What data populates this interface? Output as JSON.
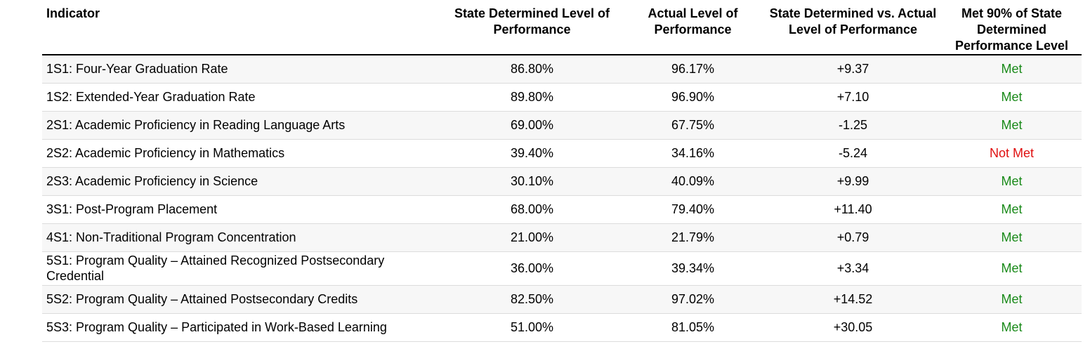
{
  "columns": {
    "indicator": "Indicator",
    "state_determined": "State Determined Level of Performance",
    "actual": "Actual Level of Performance",
    "difference": "State Determined vs. Actual Level of Performance",
    "met": "Met 90% of State Determined Performance Level"
  },
  "colors": {
    "met": "#1a8a1a",
    "not_met": "#e01010"
  },
  "rows": [
    {
      "indicator": "1S1: Four-Year Graduation Rate",
      "state_determined": "86.80%",
      "actual": "96.17%",
      "difference": "+9.37",
      "met": "Met",
      "status": "met"
    },
    {
      "indicator": "1S2: Extended-Year Graduation Rate",
      "state_determined": "89.80%",
      "actual": "96.90%",
      "difference": "+7.10",
      "met": "Met",
      "status": "met"
    },
    {
      "indicator": "2S1: Academic Proficiency in Reading Language Arts",
      "state_determined": "69.00%",
      "actual": "67.75%",
      "difference": "-1.25",
      "met": "Met",
      "status": "met"
    },
    {
      "indicator": "2S2: Academic Proficiency in Mathematics",
      "state_determined": "39.40%",
      "actual": "34.16%",
      "difference": "-5.24",
      "met": "Not Met",
      "status": "notmet"
    },
    {
      "indicator": "2S3: Academic Proficiency in Science",
      "state_determined": "30.10%",
      "actual": "40.09%",
      "difference": "+9.99",
      "met": "Met",
      "status": "met"
    },
    {
      "indicator": "3S1: Post-Program Placement",
      "state_determined": "68.00%",
      "actual": "79.40%",
      "difference": "+11.40",
      "met": "Met",
      "status": "met"
    },
    {
      "indicator": "4S1: Non-Traditional Program Concentration",
      "state_determined": "21.00%",
      "actual": "21.79%",
      "difference": "+0.79",
      "met": "Met",
      "status": "met"
    },
    {
      "indicator": "5S1: Program Quality – Attained Recognized Postsecondary Credential",
      "state_determined": "36.00%",
      "actual": "39.34%",
      "difference": "+3.34",
      "met": "Met",
      "status": "met"
    },
    {
      "indicator": "5S2: Program Quality – Attained Postsecondary Credits",
      "state_determined": "82.50%",
      "actual": "97.02%",
      "difference": "+14.52",
      "met": "Met",
      "status": "met"
    },
    {
      "indicator": "5S3: Program Quality – Participated in Work-Based Learning",
      "state_determined": "51.00%",
      "actual": "81.05%",
      "difference": "+30.05",
      "met": "Met",
      "status": "met"
    }
  ]
}
